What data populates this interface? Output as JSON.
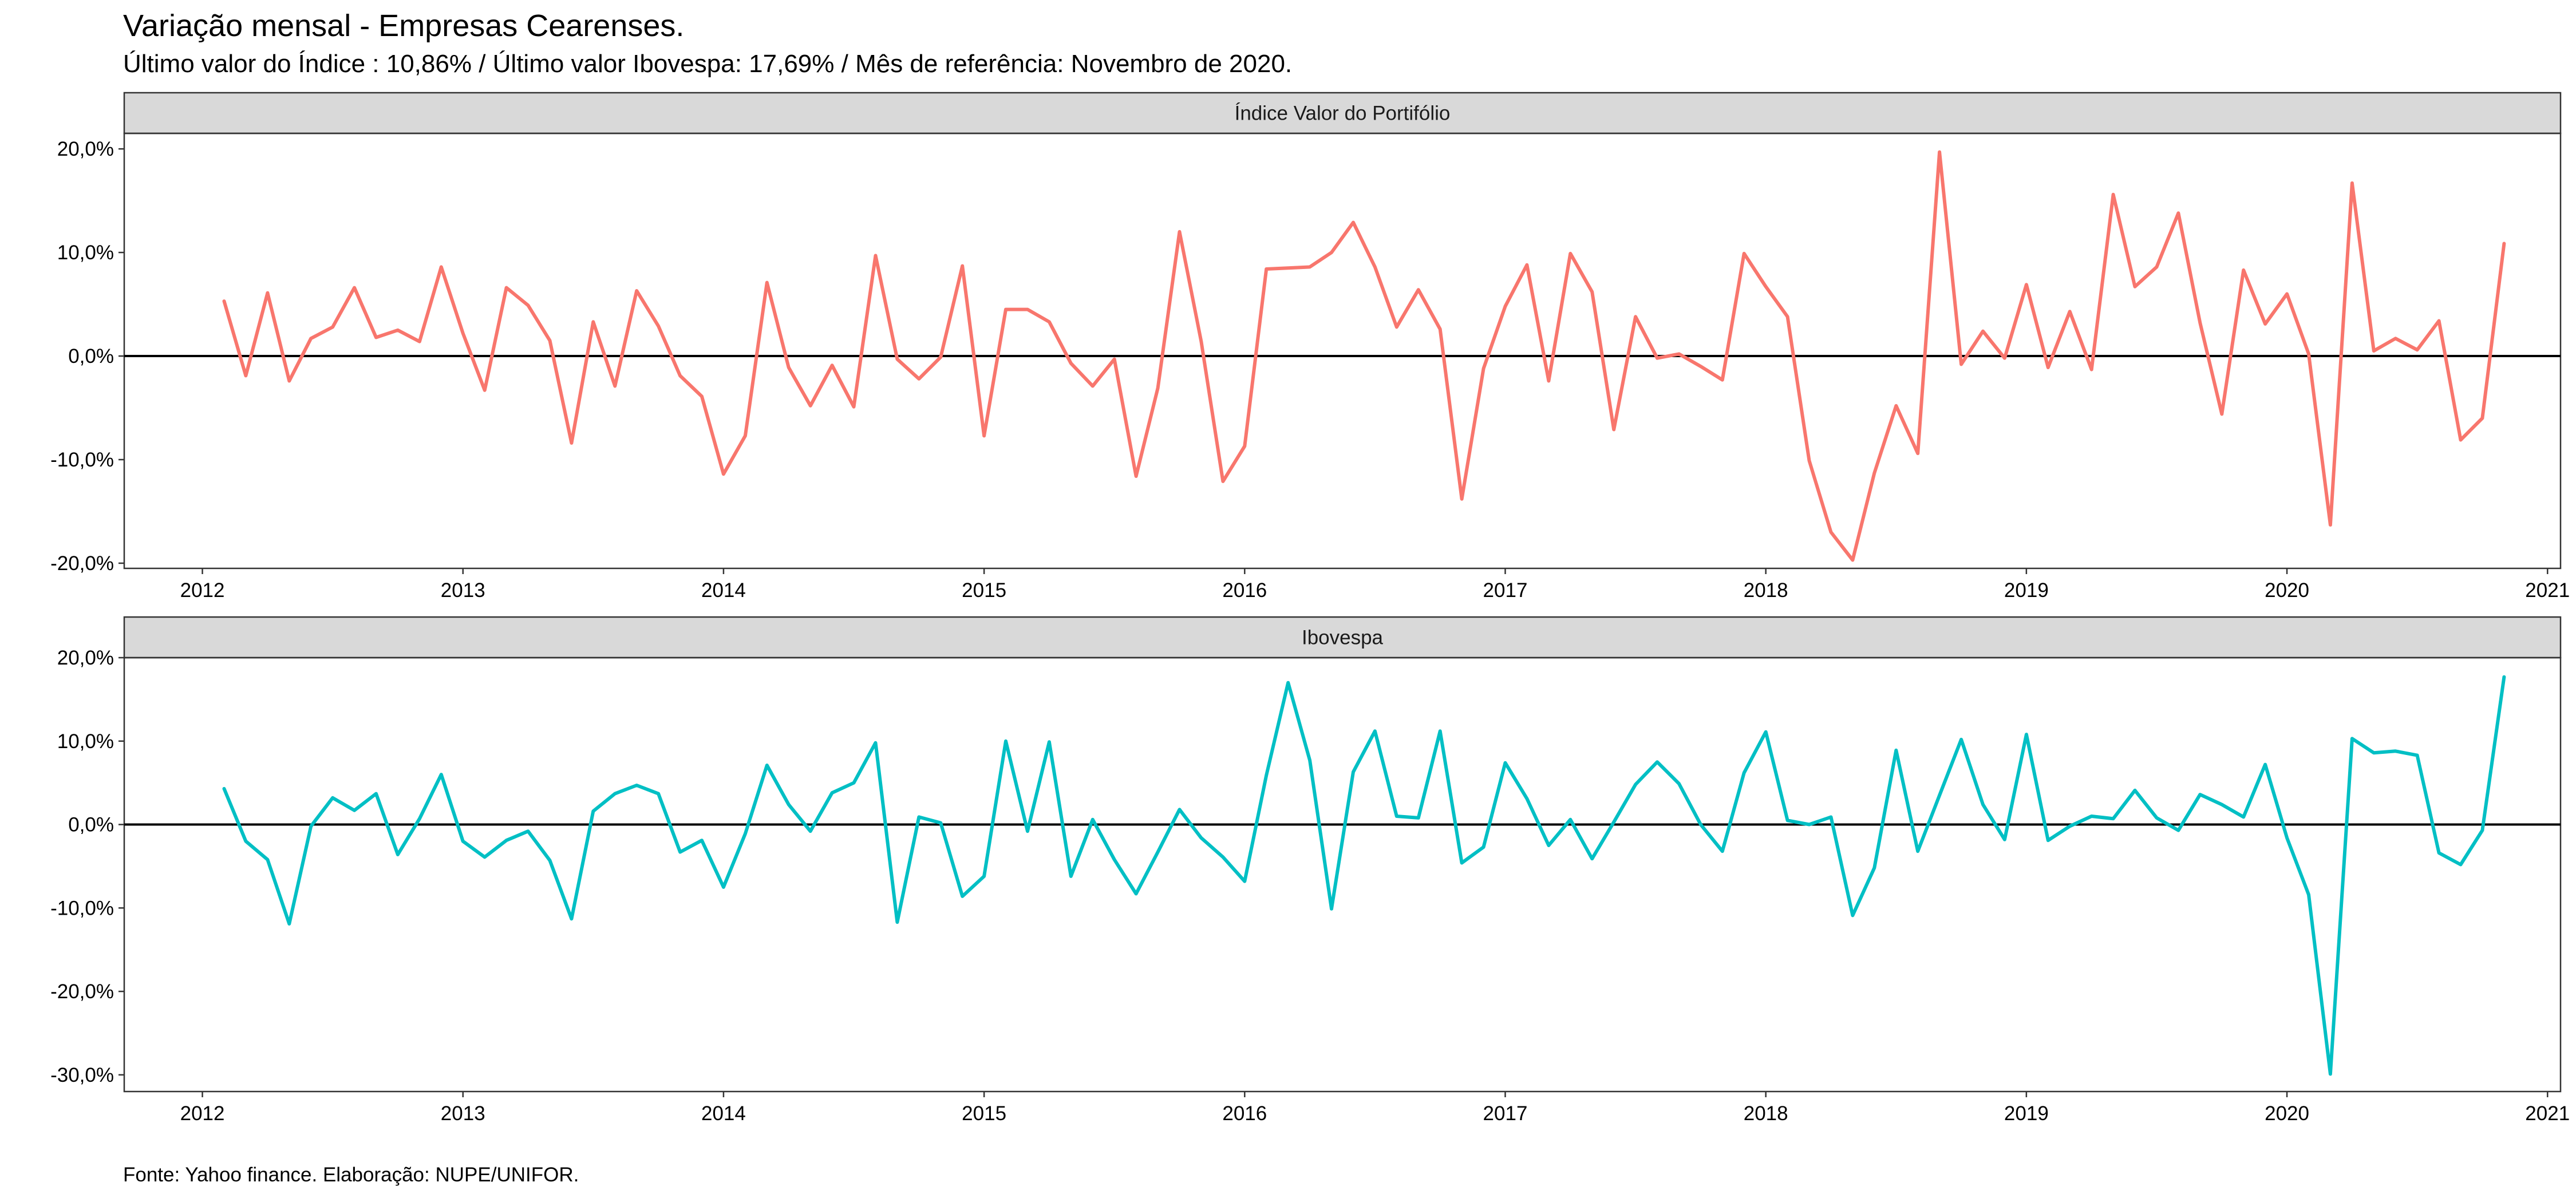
{
  "title": "Variação mensal - Empresas Cearenses.",
  "subtitle": "Último valor do Índice : 10,86% / Último valor Ibovespa: 17,69% / Mês de referência: Novembro de 2020.",
  "caption": "Fonte: Yahoo finance. Elaboração: NUPE/UNIFOR.",
  "colors": {
    "indice": "#F8766D",
    "ibovespa": "#00BFC4",
    "strip_fill": "#D9D9D9",
    "zero_line": "#000000"
  },
  "chart_data": [
    {
      "type": "line",
      "panel_title": "Índice Valor do Portifólio",
      "x_start": "2012-02",
      "x_end": "2020-11",
      "x_frequency": "monthly",
      "xlim": [
        2011.7,
        2021.05
      ],
      "ylim": [
        -20.5,
        21.5
      ],
      "x_ticks": [
        2012,
        2013,
        2014,
        2015,
        2016,
        2017,
        2018,
        2019,
        2020,
        2021
      ],
      "y_ticks": [
        20,
        10,
        0,
        -10,
        -20
      ],
      "y_tick_labels": [
        "20,0%",
        "10,0%",
        "0,0%",
        "-10,0%",
        "-20,0%"
      ],
      "x_tick_labels": [
        "2012",
        "2013",
        "2014",
        "2015",
        "2016",
        "2017",
        "2018",
        "2019",
        "2020",
        "2021"
      ],
      "zero_line": true,
      "grid": false,
      "color": "#F8766D",
      "values": [
        5.3,
        -1.9,
        6.1,
        -2.4,
        1.7,
        2.8,
        6.6,
        1.8,
        2.5,
        1.4,
        8.6,
        2.2,
        -3.3,
        6.6,
        4.9,
        1.5,
        -8.4,
        3.3,
        -2.9,
        6.3,
        2.9,
        -1.9,
        -3.9,
        -11.4,
        -7.7,
        7.1,
        -1.1,
        -4.8,
        -0.9,
        -4.9,
        9.7,
        -0.3,
        -2.2,
        -0.1,
        8.7,
        -7.7,
        4.5,
        4.5,
        3.3,
        -0.7,
        -2.9,
        -0.3,
        -11.6,
        -3.1,
        12.0,
        1.4,
        -12.1,
        -8.7,
        8.4,
        8.5,
        8.6,
        10.0,
        12.9,
        8.6,
        2.8,
        6.4,
        2.6,
        -13.8,
        -1.2,
        4.8,
        8.8,
        -2.4,
        9.9,
        6.2,
        -7.1,
        3.8,
        -0.2,
        0.2,
        -1.0,
        -2.3,
        9.9,
        6.7,
        3.8,
        -10.1,
        -17.0,
        -19.7,
        -11.3,
        -4.8,
        -9.4,
        19.7,
        -0.8,
        2.4,
        -0.2,
        6.9,
        -1.1,
        4.3,
        -1.3,
        15.6,
        6.7,
        8.6,
        13.8,
        3.2,
        -5.6,
        8.3,
        3.1,
        6.0,
        0.2,
        -16.3,
        16.7,
        0.5,
        1.7,
        0.6,
        3.4,
        -8.1,
        -6.0,
        10.86
      ]
    },
    {
      "type": "line",
      "panel_title": "Ibovespa",
      "x_start": "2012-02",
      "x_end": "2020-11",
      "x_frequency": "monthly",
      "xlim": [
        2011.7,
        2021.05
      ],
      "ylim": [
        -32,
        20
      ],
      "x_ticks": [
        2012,
        2013,
        2014,
        2015,
        2016,
        2017,
        2018,
        2019,
        2020,
        2021
      ],
      "y_ticks": [
        20,
        10,
        0,
        -10,
        -20,
        -30
      ],
      "y_tick_labels": [
        "20,0%",
        "10,0%",
        "0,0%",
        "-10,0%",
        "-20,0%",
        "-30,0%"
      ],
      "x_tick_labels": [
        "2012",
        "2013",
        "2014",
        "2015",
        "2016",
        "2017",
        "2018",
        "2019",
        "2020",
        "2021"
      ],
      "zero_line": true,
      "grid": false,
      "color": "#00BFC4",
      "values": [
        4.3,
        -2.0,
        -4.2,
        -11.9,
        -0.2,
        3.2,
        1.7,
        3.7,
        -3.6,
        0.7,
        6.0,
        -2.0,
        -3.9,
        -1.9,
        -0.8,
        -4.3,
        -11.3,
        1.6,
        3.7,
        4.7,
        3.7,
        -3.3,
        -1.9,
        -7.5,
        -1.1,
        7.1,
        2.4,
        -0.8,
        3.8,
        5.0,
        9.8,
        -11.7,
        0.9,
        0.2,
        -8.6,
        -6.2,
        10.0,
        -0.8,
        9.9,
        -6.2,
        0.6,
        -4.2,
        -8.3,
        -3.3,
        1.8,
        -1.6,
        -3.9,
        -6.8,
        5.9,
        17.0,
        7.7,
        -10.1,
        6.3,
        11.2,
        1.0,
        0.8,
        11.2,
        -4.6,
        -2.7,
        7.4,
        3.1,
        -2.5,
        0.6,
        -4.1,
        0.3,
        4.8,
        7.5,
        4.9,
        -0.0,
        -3.2,
        6.2,
        11.1,
        0.5,
        -0.0,
        0.9,
        -10.9,
        -5.2,
        8.9,
        -3.2,
        3.5,
        10.2,
        2.4,
        -1.8,
        10.8,
        -1.9,
        -0.2,
        1.0,
        0.7,
        4.1,
        0.8,
        -0.7,
        3.6,
        2.4,
        0.9,
        7.2,
        -1.6,
        -8.4,
        -29.9,
        10.3,
        8.6,
        8.8,
        8.3,
        -3.4,
        -4.8,
        -0.7,
        17.69
      ]
    }
  ]
}
